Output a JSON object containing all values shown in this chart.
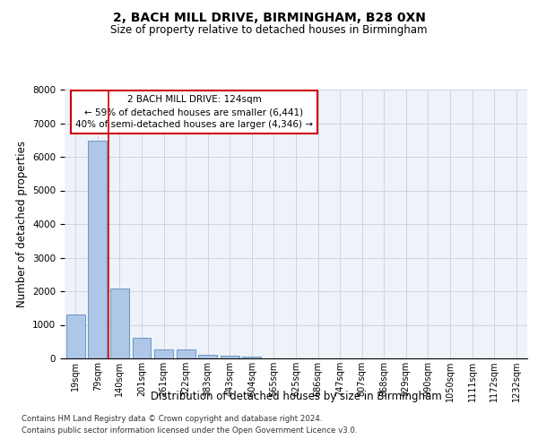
{
  "title1": "2, BACH MILL DRIVE, BIRMINGHAM, B28 0XN",
  "title2": "Size of property relative to detached houses in Birmingham",
  "xlabel": "Distribution of detached houses by size in Birmingham",
  "ylabel": "Number of detached properties",
  "footnote1": "Contains HM Land Registry data © Crown copyright and database right 2024.",
  "footnote2": "Contains public sector information licensed under the Open Government Licence v3.0.",
  "annotation_line1": "2 BACH MILL DRIVE: 124sqm",
  "annotation_line2": "← 59% of detached houses are smaller (6,441)",
  "annotation_line3": "40% of semi-detached houses are larger (4,346) →",
  "bar_color": "#aec6e8",
  "bar_edge_color": "#5b8db8",
  "vline_color": "#cc0000",
  "background_color": "#eef2f9",
  "grid_color": "#c8d0dc",
  "categories": [
    "19sqm",
    "79sqm",
    "140sqm",
    "201sqm",
    "261sqm",
    "322sqm",
    "383sqm",
    "443sqm",
    "504sqm",
    "565sqm",
    "625sqm",
    "686sqm",
    "747sqm",
    "807sqm",
    "868sqm",
    "929sqm",
    "990sqm",
    "1050sqm",
    "1111sqm",
    "1172sqm",
    "1232sqm"
  ],
  "values": [
    1300,
    6490,
    2090,
    620,
    270,
    265,
    110,
    80,
    60,
    0,
    0,
    0,
    0,
    0,
    0,
    0,
    0,
    0,
    0,
    0,
    0
  ],
  "vline_x_pos": 1.5,
  "ylim": [
    0,
    8000
  ],
  "yticks": [
    0,
    1000,
    2000,
    3000,
    4000,
    5000,
    6000,
    7000,
    8000
  ]
}
